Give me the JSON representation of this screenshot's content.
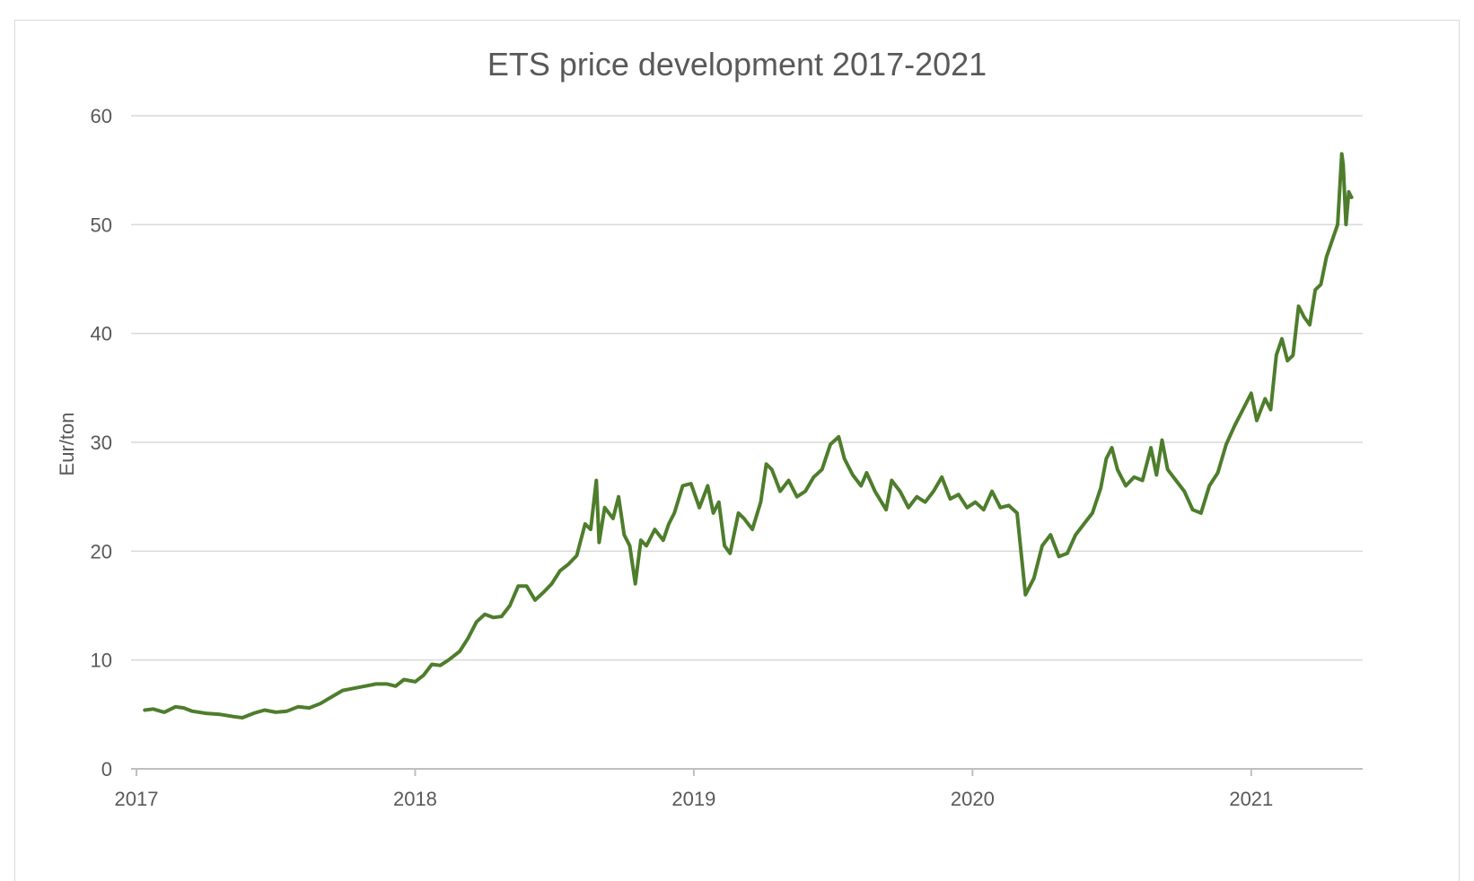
{
  "chart_data": {
    "type": "line",
    "title": "ETS price development 2017-2021",
    "xlabel": "",
    "ylabel": "Eur/ton",
    "xlim": [
      2017.0,
      2021.4
    ],
    "ylim": [
      0,
      60
    ],
    "yticks": [
      0,
      10,
      20,
      30,
      40,
      50,
      60
    ],
    "xticks": [
      "2017",
      "2018",
      "2019",
      "2020",
      "2021"
    ],
    "grid": true,
    "legend": "none",
    "line_color": "#4e7d2c",
    "series": [
      {
        "points": [
          [
            2017.03,
            5.4
          ],
          [
            2017.06,
            5.5
          ],
          [
            2017.1,
            5.2
          ],
          [
            2017.14,
            5.7
          ],
          [
            2017.17,
            5.6
          ],
          [
            2017.2,
            5.3
          ],
          [
            2017.25,
            5.1
          ],
          [
            2017.3,
            5.0
          ],
          [
            2017.35,
            4.8
          ],
          [
            2017.38,
            4.7
          ],
          [
            2017.42,
            5.1
          ],
          [
            2017.46,
            5.4
          ],
          [
            2017.5,
            5.2
          ],
          [
            2017.54,
            5.3
          ],
          [
            2017.58,
            5.7
          ],
          [
            2017.62,
            5.6
          ],
          [
            2017.66,
            6.0
          ],
          [
            2017.7,
            6.6
          ],
          [
            2017.74,
            7.2
          ],
          [
            2017.78,
            7.4
          ],
          [
            2017.82,
            7.6
          ],
          [
            2017.86,
            7.8
          ],
          [
            2017.9,
            7.8
          ],
          [
            2017.93,
            7.6
          ],
          [
            2017.96,
            8.2
          ],
          [
            2018.0,
            8.0
          ],
          [
            2018.03,
            8.6
          ],
          [
            2018.06,
            9.6
          ],
          [
            2018.09,
            9.5
          ],
          [
            2018.12,
            10.0
          ],
          [
            2018.16,
            10.8
          ],
          [
            2018.19,
            12.0
          ],
          [
            2018.22,
            13.5
          ],
          [
            2018.25,
            14.2
          ],
          [
            2018.28,
            13.9
          ],
          [
            2018.31,
            14.0
          ],
          [
            2018.34,
            15.0
          ],
          [
            2018.37,
            16.8
          ],
          [
            2018.4,
            16.8
          ],
          [
            2018.43,
            15.5
          ],
          [
            2018.46,
            16.2
          ],
          [
            2018.49,
            17.0
          ],
          [
            2018.52,
            18.2
          ],
          [
            2018.55,
            18.8
          ],
          [
            2018.58,
            19.6
          ],
          [
            2018.61,
            22.5
          ],
          [
            2018.63,
            22.0
          ],
          [
            2018.65,
            26.5
          ],
          [
            2018.66,
            20.8
          ],
          [
            2018.68,
            24.0
          ],
          [
            2018.71,
            23.0
          ],
          [
            2018.73,
            25.0
          ],
          [
            2018.75,
            21.5
          ],
          [
            2018.77,
            20.5
          ],
          [
            2018.79,
            17.0
          ],
          [
            2018.81,
            21.0
          ],
          [
            2018.83,
            20.5
          ],
          [
            2018.86,
            22.0
          ],
          [
            2018.89,
            21.0
          ],
          [
            2018.91,
            22.5
          ],
          [
            2018.93,
            23.5
          ],
          [
            2018.96,
            26.0
          ],
          [
            2018.99,
            26.2
          ],
          [
            2019.02,
            24.0
          ],
          [
            2019.05,
            26.0
          ],
          [
            2019.07,
            23.5
          ],
          [
            2019.09,
            24.5
          ],
          [
            2019.11,
            20.5
          ],
          [
            2019.13,
            19.8
          ],
          [
            2019.16,
            23.5
          ],
          [
            2019.18,
            23.0
          ],
          [
            2019.21,
            22.0
          ],
          [
            2019.24,
            24.5
          ],
          [
            2019.26,
            28.0
          ],
          [
            2019.28,
            27.5
          ],
          [
            2019.31,
            25.5
          ],
          [
            2019.34,
            26.5
          ],
          [
            2019.37,
            25.0
          ],
          [
            2019.4,
            25.5
          ],
          [
            2019.43,
            26.8
          ],
          [
            2019.46,
            27.5
          ],
          [
            2019.49,
            29.8
          ],
          [
            2019.52,
            30.5
          ],
          [
            2019.54,
            28.5
          ],
          [
            2019.57,
            27.0
          ],
          [
            2019.6,
            26.0
          ],
          [
            2019.62,
            27.2
          ],
          [
            2019.65,
            25.5
          ],
          [
            2019.69,
            23.8
          ],
          [
            2019.71,
            26.5
          ],
          [
            2019.74,
            25.5
          ],
          [
            2019.77,
            24.0
          ],
          [
            2019.8,
            25.0
          ],
          [
            2019.83,
            24.5
          ],
          [
            2019.86,
            25.5
          ],
          [
            2019.89,
            26.8
          ],
          [
            2019.92,
            24.8
          ],
          [
            2019.95,
            25.2
          ],
          [
            2019.98,
            24.0
          ],
          [
            2020.01,
            24.5
          ],
          [
            2020.04,
            23.8
          ],
          [
            2020.07,
            25.5
          ],
          [
            2020.1,
            24.0
          ],
          [
            2020.13,
            24.2
          ],
          [
            2020.16,
            23.5
          ],
          [
            2020.19,
            16.0
          ],
          [
            2020.22,
            17.5
          ],
          [
            2020.25,
            20.5
          ],
          [
            2020.28,
            21.5
          ],
          [
            2020.31,
            19.5
          ],
          [
            2020.34,
            19.8
          ],
          [
            2020.37,
            21.5
          ],
          [
            2020.4,
            22.5
          ],
          [
            2020.43,
            23.5
          ],
          [
            2020.46,
            25.8
          ],
          [
            2020.48,
            28.5
          ],
          [
            2020.5,
            29.5
          ],
          [
            2020.52,
            27.5
          ],
          [
            2020.55,
            26.0
          ],
          [
            2020.58,
            26.8
          ],
          [
            2020.61,
            26.5
          ],
          [
            2020.64,
            29.5
          ],
          [
            2020.66,
            27.0
          ],
          [
            2020.68,
            30.2
          ],
          [
            2020.7,
            27.5
          ],
          [
            2020.73,
            26.5
          ],
          [
            2020.76,
            25.5
          ],
          [
            2020.79,
            23.8
          ],
          [
            2020.82,
            23.5
          ],
          [
            2020.85,
            26.0
          ],
          [
            2020.88,
            27.2
          ],
          [
            2020.91,
            29.8
          ],
          [
            2020.94,
            31.5
          ],
          [
            2020.97,
            33.0
          ],
          [
            2021.0,
            34.5
          ],
          [
            2021.02,
            32.0
          ],
          [
            2021.05,
            34.0
          ],
          [
            2021.07,
            33.0
          ],
          [
            2021.09,
            38.0
          ],
          [
            2021.11,
            39.5
          ],
          [
            2021.13,
            37.5
          ],
          [
            2021.15,
            38.0
          ],
          [
            2021.17,
            42.5
          ],
          [
            2021.19,
            41.5
          ],
          [
            2021.21,
            40.8
          ],
          [
            2021.23,
            44.0
          ],
          [
            2021.25,
            44.5
          ],
          [
            2021.27,
            47.0
          ],
          [
            2021.29,
            48.5
          ],
          [
            2021.31,
            50.0
          ],
          [
            2021.325,
            56.5
          ],
          [
            2021.33,
            55.5
          ],
          [
            2021.34,
            50.0
          ],
          [
            2021.35,
            53.0
          ],
          [
            2021.36,
            52.5
          ]
        ]
      }
    ]
  }
}
